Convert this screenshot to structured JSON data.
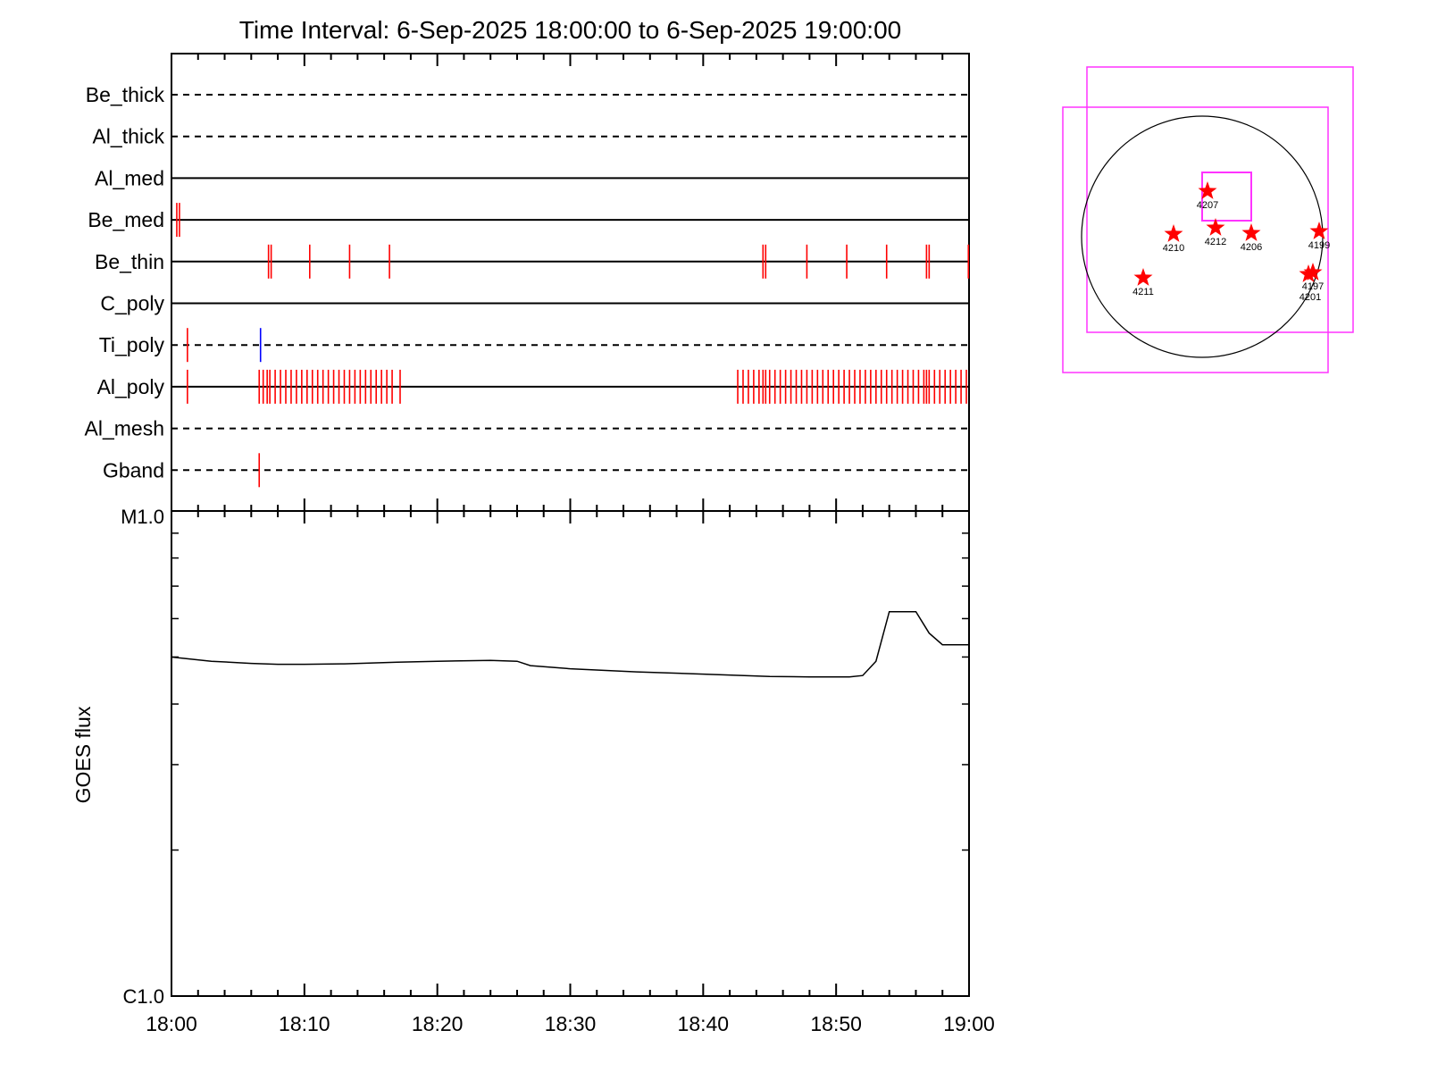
{
  "chart_data": [
    {
      "type": "timeline",
      "title": "Time Interval:  6-Sep-2025 18:00:00 to  6-Sep-2025 19:00:00",
      "x_unit": "minutes after 18:00",
      "xlim": [
        0,
        60
      ],
      "filters": [
        {
          "name": "Be_thick",
          "line": "dashed",
          "events": []
        },
        {
          "name": "Al_thick",
          "line": "dashed",
          "events": []
        },
        {
          "name": "Al_med",
          "line": "solid",
          "events": []
        },
        {
          "name": "Be_med",
          "line": "solid",
          "events": [
            {
              "t": 0.4,
              "color": "red"
            },
            {
              "t": 0.6,
              "color": "red"
            }
          ]
        },
        {
          "name": "Be_thin",
          "line": "solid",
          "events": [
            {
              "t": 7.3,
              "color": "red"
            },
            {
              "t": 7.5,
              "color": "red"
            },
            {
              "t": 10.4,
              "color": "red"
            },
            {
              "t": 13.4,
              "color": "red"
            },
            {
              "t": 16.4,
              "color": "red"
            },
            {
              "t": 44.5,
              "color": "red"
            },
            {
              "t": 44.7,
              "color": "red"
            },
            {
              "t": 47.8,
              "color": "red"
            },
            {
              "t": 50.8,
              "color": "red"
            },
            {
              "t": 53.8,
              "color": "red"
            },
            {
              "t": 56.8,
              "color": "red"
            },
            {
              "t": 57.0,
              "color": "red"
            },
            {
              "t": 59.95,
              "color": "red"
            }
          ]
        },
        {
          "name": "C_poly",
          "line": "solid",
          "events": []
        },
        {
          "name": "Ti_poly",
          "line": "dashed",
          "events": [
            {
              "t": 1.2,
              "color": "red"
            },
            {
              "t": 6.7,
              "color": "blue"
            }
          ]
        },
        {
          "name": "Al_poly",
          "line": "solid",
          "events": [
            {
              "t": 1.2,
              "color": "red"
            },
            {
              "t": 6.6,
              "color": "red"
            },
            {
              "t": 6.9,
              "color": "red"
            },
            {
              "t": 7.2,
              "color": "red"
            },
            {
              "t": 7.4,
              "color": "red"
            },
            {
              "t": 7.8,
              "color": "red"
            },
            {
              "t": 8.2,
              "color": "red"
            },
            {
              "t": 8.6,
              "color": "red"
            },
            {
              "t": 9.0,
              "color": "red"
            },
            {
              "t": 9.4,
              "color": "red"
            },
            {
              "t": 9.8,
              "color": "red"
            },
            {
              "t": 10.2,
              "color": "red"
            },
            {
              "t": 10.6,
              "color": "red"
            },
            {
              "t": 11.0,
              "color": "red"
            },
            {
              "t": 11.4,
              "color": "red"
            },
            {
              "t": 11.8,
              "color": "red"
            },
            {
              "t": 12.2,
              "color": "red"
            },
            {
              "t": 12.6,
              "color": "red"
            },
            {
              "t": 13.0,
              "color": "red"
            },
            {
              "t": 13.4,
              "color": "red"
            },
            {
              "t": 13.8,
              "color": "red"
            },
            {
              "t": 14.2,
              "color": "red"
            },
            {
              "t": 14.6,
              "color": "red"
            },
            {
              "t": 15.0,
              "color": "red"
            },
            {
              "t": 15.4,
              "color": "red"
            },
            {
              "t": 15.8,
              "color": "red"
            },
            {
              "t": 16.2,
              "color": "red"
            },
            {
              "t": 16.6,
              "color": "red"
            },
            {
              "t": 17.2,
              "color": "red"
            },
            {
              "t": 42.6,
              "color": "red"
            },
            {
              "t": 43.0,
              "color": "red"
            },
            {
              "t": 43.4,
              "color": "red"
            },
            {
              "t": 43.8,
              "color": "red"
            },
            {
              "t": 44.2,
              "color": "red"
            },
            {
              "t": 44.5,
              "color": "red"
            },
            {
              "t": 44.7,
              "color": "red"
            },
            {
              "t": 45.0,
              "color": "red"
            },
            {
              "t": 45.4,
              "color": "red"
            },
            {
              "t": 45.8,
              "color": "red"
            },
            {
              "t": 46.2,
              "color": "red"
            },
            {
              "t": 46.6,
              "color": "red"
            },
            {
              "t": 47.0,
              "color": "red"
            },
            {
              "t": 47.4,
              "color": "red"
            },
            {
              "t": 47.8,
              "color": "red"
            },
            {
              "t": 48.2,
              "color": "red"
            },
            {
              "t": 48.6,
              "color": "red"
            },
            {
              "t": 49.0,
              "color": "red"
            },
            {
              "t": 49.4,
              "color": "red"
            },
            {
              "t": 49.8,
              "color": "red"
            },
            {
              "t": 50.2,
              "color": "red"
            },
            {
              "t": 50.6,
              "color": "red"
            },
            {
              "t": 51.0,
              "color": "red"
            },
            {
              "t": 51.4,
              "color": "red"
            },
            {
              "t": 51.8,
              "color": "red"
            },
            {
              "t": 52.2,
              "color": "red"
            },
            {
              "t": 52.6,
              "color": "red"
            },
            {
              "t": 53.0,
              "color": "red"
            },
            {
              "t": 53.4,
              "color": "red"
            },
            {
              "t": 53.8,
              "color": "red"
            },
            {
              "t": 54.2,
              "color": "red"
            },
            {
              "t": 54.6,
              "color": "red"
            },
            {
              "t": 55.0,
              "color": "red"
            },
            {
              "t": 55.4,
              "color": "red"
            },
            {
              "t": 55.8,
              "color": "red"
            },
            {
              "t": 56.2,
              "color": "red"
            },
            {
              "t": 56.6,
              "color": "red"
            },
            {
              "t": 56.8,
              "color": "red"
            },
            {
              "t": 57.0,
              "color": "red"
            },
            {
              "t": 57.4,
              "color": "red"
            },
            {
              "t": 57.8,
              "color": "red"
            },
            {
              "t": 58.2,
              "color": "red"
            },
            {
              "t": 58.6,
              "color": "red"
            },
            {
              "t": 59.0,
              "color": "red"
            },
            {
              "t": 59.4,
              "color": "red"
            },
            {
              "t": 59.8,
              "color": "red"
            }
          ]
        },
        {
          "name": "Al_mesh",
          "line": "dashed",
          "events": []
        },
        {
          "name": "Gband",
          "line": "dashed",
          "events": [
            {
              "t": 6.6,
              "color": "red"
            }
          ]
        }
      ]
    },
    {
      "type": "line",
      "ylabel": "GOES flux",
      "yscale": "log",
      "ylim": [
        1e-06,
        1e-05
      ],
      "ytick_labels": [
        "C1.0",
        "M1.0"
      ],
      "xlim": [
        0,
        60
      ],
      "xtick_labels": [
        "18:00",
        "18:10",
        "18:20",
        "18:30",
        "18:40",
        "18:50",
        "19:00"
      ],
      "series": [
        {
          "x": [
            0,
            3,
            6,
            8,
            10,
            13,
            17,
            20,
            24,
            26,
            27,
            30,
            35,
            40,
            45,
            48,
            51,
            52,
            53,
            54,
            55,
            56,
            57,
            58,
            59,
            60
          ],
          "y": [
            5e-06,
            4.9e-06,
            4.85e-06,
            4.83e-06,
            4.83e-06,
            4.84e-06,
            4.88e-06,
            4.9e-06,
            4.92e-06,
            4.9e-06,
            4.8e-06,
            4.73e-06,
            4.66e-06,
            4.61e-06,
            4.56e-06,
            4.55e-06,
            4.55e-06,
            4.58e-06,
            4.9e-06,
            6.2e-06,
            6.2e-06,
            6.2e-06,
            5.6e-06,
            5.3e-06,
            5.3e-06,
            5.3e-06
          ]
        }
      ]
    },
    {
      "type": "solar-disk",
      "regions": [
        "4207",
        "4210",
        "4212",
        "4206",
        "4199",
        "4211",
        "4197",
        "4201"
      ]
    }
  ],
  "colors": {
    "event_red": "#ff0000",
    "event_blue": "#0000ff",
    "fov_box": "#ff33ff",
    "axes": "#000000"
  }
}
